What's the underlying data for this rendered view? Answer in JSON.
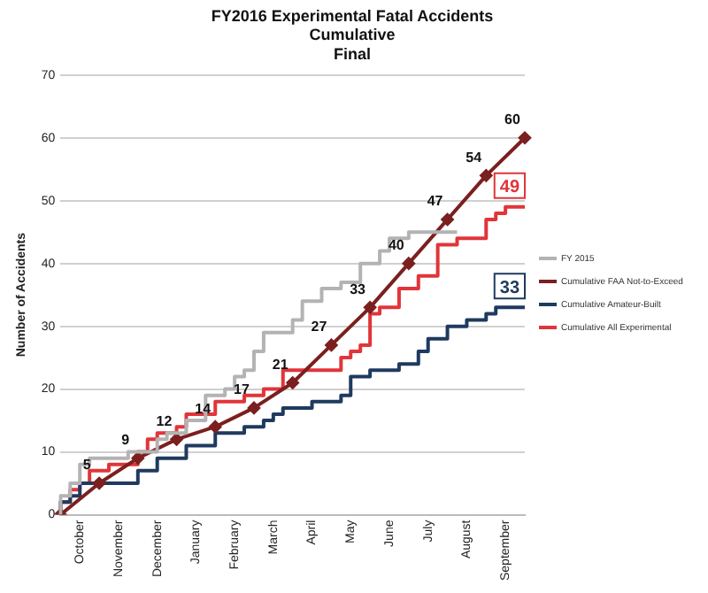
{
  "chart_data": {
    "type": "line",
    "title": "FY2016 Experimental Fatal Accidents",
    "subtitle": "Cumulative Final",
    "ylabel": "Number of Accidents",
    "categories": [
      null,
      null,
      "October",
      null,
      null,
      null,
      "November",
      null,
      null,
      null,
      "December",
      null,
      null,
      null,
      "January",
      null,
      null,
      null,
      "February",
      null,
      null,
      null,
      "March",
      null,
      null,
      null,
      "April",
      null,
      null,
      null,
      "May",
      null,
      null,
      null,
      "June",
      null,
      null,
      null,
      "July",
      null,
      null,
      null,
      "August",
      null,
      null,
      null,
      "September",
      null,
      null
    ],
    "ylim": [
      0,
      70
    ],
    "yticks": [
      0,
      10,
      20,
      30,
      40,
      50,
      60,
      70
    ],
    "grid": "y",
    "legend": "right",
    "line_style": "solid",
    "series": [
      {
        "name": "FY 2015",
        "type": "step",
        "color": "#b3b3b3",
        "marker": "none",
        "values": [
          0,
          3,
          5,
          8,
          9,
          9,
          9,
          9,
          10,
          10,
          10,
          12,
          13,
          13,
          15,
          15,
          19,
          19,
          20,
          22,
          23,
          26,
          29,
          29,
          29,
          31,
          34,
          34,
          36,
          36,
          37,
          37,
          40,
          40,
          42,
          44,
          44,
          45,
          45,
          45,
          45,
          45,
          null,
          null,
          null,
          null,
          null,
          null,
          null
        ]
      },
      {
        "name": "Cumulative FAA Not-to-Exceed",
        "type": "line",
        "color": "#7b1f1f",
        "marker": "diamond",
        "values": [
          0,
          null,
          null,
          null,
          5,
          null,
          null,
          null,
          9,
          null,
          null,
          null,
          12,
          null,
          null,
          null,
          14,
          null,
          null,
          null,
          17,
          null,
          null,
          null,
          21,
          null,
          null,
          null,
          27,
          null,
          null,
          null,
          33,
          null,
          null,
          null,
          40,
          null,
          null,
          null,
          47,
          null,
          null,
          null,
          54,
          null,
          null,
          null,
          60
        ],
        "value_labels": [
          null,
          null,
          null,
          null,
          "5",
          null,
          null,
          null,
          "9",
          null,
          null,
          null,
          "12",
          null,
          null,
          null,
          "14",
          null,
          null,
          null,
          "17",
          null,
          null,
          null,
          "21",
          null,
          null,
          null,
          "27",
          null,
          null,
          null,
          "33",
          null,
          null,
          null,
          "40",
          null,
          null,
          null,
          "47",
          null,
          null,
          null,
          "54",
          null,
          null,
          null,
          "60"
        ]
      },
      {
        "name": "Cumulative Amateur-Built",
        "type": "step",
        "color": "#1f3a5f",
        "marker": "none",
        "values": [
          0,
          2,
          3,
          5,
          5,
          5,
          5,
          5,
          5,
          7,
          7,
          9,
          9,
          9,
          11,
          11,
          11,
          13,
          13,
          13,
          14,
          14,
          15,
          16,
          17,
          17,
          17,
          18,
          18,
          18,
          19,
          22,
          22,
          23,
          23,
          23,
          24,
          24,
          26,
          28,
          28,
          30,
          30,
          31,
          31,
          32,
          33,
          33,
          33
        ]
      },
      {
        "name": "Cumulative All Experimental",
        "type": "step",
        "color": "#e0353a",
        "marker": "none",
        "values": [
          0,
          2,
          4,
          5,
          7,
          7,
          8,
          8,
          8,
          10,
          12,
          13,
          13,
          14,
          16,
          16,
          16,
          18,
          18,
          18,
          19,
          19,
          20,
          20,
          23,
          23,
          23,
          23,
          23,
          23,
          25,
          26,
          27,
          32,
          33,
          33,
          36,
          36,
          38,
          38,
          43,
          43,
          44,
          44,
          44,
          47,
          48,
          49,
          49
        ]
      }
    ],
    "annotations": [
      {
        "text": "49",
        "y": 49
      },
      {
        "text": "33",
        "y": 33
      }
    ]
  }
}
